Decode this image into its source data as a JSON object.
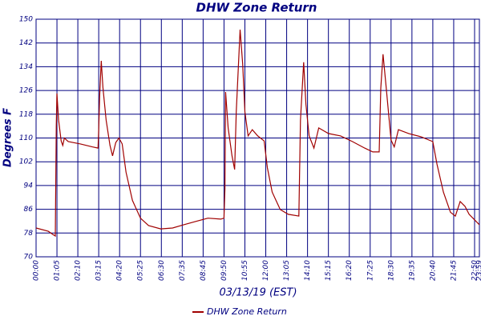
{
  "chart_data": {
    "type": "line",
    "title": "DHW Zone Return",
    "xlabel": "03/13/19 (EST)",
    "ylabel": "Degrees F",
    "ylim": [
      70,
      150
    ],
    "yticks": [
      70,
      78,
      86,
      94,
      102,
      110,
      118,
      126,
      134,
      142,
      150
    ],
    "grid": true,
    "legend": "bottom",
    "xticks": [
      "00:00",
      "01:05",
      "02:10",
      "03:15",
      "04:20",
      "05:25",
      "06:30",
      "07:35",
      "08:45",
      "09:50",
      "10:55",
      "12:00",
      "13:05",
      "14:10",
      "15:15",
      "16:20",
      "17:25",
      "18:30",
      "19:35",
      "20:40",
      "21:45",
      "22:50",
      "23:59"
    ],
    "x": [
      "00:00",
      "00:38",
      "00:53",
      "01:00",
      "01:03",
      "01:05",
      "01:10",
      "01:18",
      "01:23",
      "01:28",
      "01:40",
      "02:18",
      "02:55",
      "03:13",
      "03:15",
      "03:18",
      "03:23",
      "03:28",
      "03:38",
      "03:50",
      "03:58",
      "04:08",
      "04:18",
      "04:28",
      "04:40",
      "05:00",
      "05:25",
      "05:50",
      "06:28",
      "07:05",
      "07:40",
      "08:20",
      "09:00",
      "09:40",
      "09:50",
      "09:53",
      "09:55",
      "10:03",
      "10:15",
      "10:23",
      "10:28",
      "10:40",
      "10:48",
      "10:55",
      "11:05",
      "11:18",
      "11:35",
      "11:55",
      "12:05",
      "12:20",
      "12:45",
      "13:10",
      "13:43",
      "13:48",
      "13:58",
      "14:05",
      "14:15",
      "14:30",
      "14:45",
      "15:15",
      "15:53",
      "16:30",
      "17:08",
      "17:33",
      "17:53",
      "17:58",
      "18:05",
      "18:15",
      "18:30",
      "18:40",
      "18:53",
      "19:25",
      "20:03",
      "20:40",
      "20:53",
      "21:13",
      "21:35",
      "21:50",
      "22:05",
      "22:20",
      "22:33",
      "23:59"
    ],
    "series": [
      {
        "name": "DHW Zone Return",
        "color": "#a00000",
        "values": [
          79.7,
          78.6,
          77.5,
          77,
          114,
          125,
          116,
          109,
          107.5,
          110,
          108.8,
          108,
          107,
          106.6,
          112.6,
          124,
          136,
          127,
          116,
          107.5,
          104,
          108.5,
          110,
          108,
          98.5,
          89,
          83,
          80.5,
          79.4,
          79.7,
          80.8,
          81.9,
          83,
          82.7,
          83,
          93,
          125.5,
          113.4,
          104,
          99.4,
          118.8,
          146.5,
          135,
          118.8,
          110.7,
          112.8,
          110.7,
          109,
          100,
          91.8,
          85.9,
          84.3,
          83.7,
          116,
          135.5,
          121.4,
          110.7,
          106.6,
          113.4,
          111.5,
          110.7,
          108.8,
          106.6,
          105.3,
          105.3,
          126.8,
          138.2,
          126.8,
          109.3,
          107,
          112.8,
          111.5,
          110.4,
          108.8,
          101.2,
          91.8,
          85,
          83.7,
          88.6,
          87,
          84.3,
          80.8
        ]
      }
    ]
  }
}
